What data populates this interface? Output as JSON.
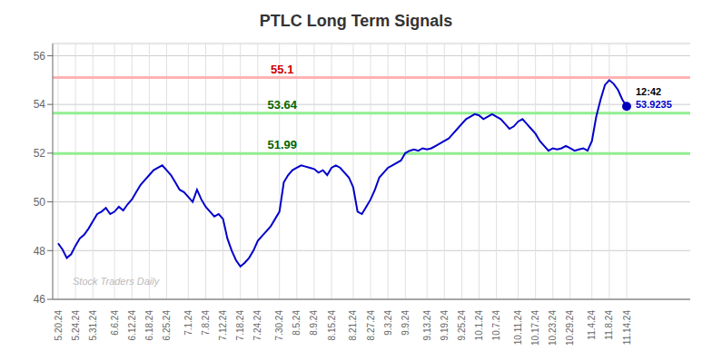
{
  "chart_data": {
    "type": "line",
    "title": "PTLC Long Term Signals",
    "grid": true,
    "ylim": [
      46,
      56.5
    ],
    "yticks": [
      46,
      48,
      50,
      52,
      54,
      56
    ],
    "categories": [
      "5.20.24",
      null,
      null,
      null,
      "5.24.24",
      null,
      null,
      null,
      "5.31.24",
      null,
      null,
      null,
      null,
      "6.6.24",
      null,
      null,
      null,
      "6.12.24",
      null,
      null,
      null,
      "6.18.24",
      null,
      null,
      null,
      "6.25.24",
      null,
      null,
      null,
      null,
      "7.1.24",
      null,
      null,
      null,
      "7.8.24",
      null,
      null,
      null,
      "7.12.24",
      null,
      null,
      null,
      "7.18.24",
      null,
      null,
      null,
      "7.24.24",
      null,
      null,
      null,
      null,
      "7.30.24",
      null,
      null,
      null,
      "8.5.24",
      null,
      null,
      null,
      "8.9.24",
      null,
      null,
      null,
      "8.15.24",
      null,
      null,
      null,
      null,
      "8.21.24",
      null,
      null,
      null,
      "8.27.24",
      null,
      null,
      null,
      "9.3.24",
      null,
      null,
      null,
      "9.9.24",
      null,
      null,
      null,
      null,
      "9.13.24",
      null,
      null,
      null,
      "9.19.24",
      null,
      null,
      null,
      "9.25.24",
      null,
      null,
      null,
      "10.1.24",
      null,
      null,
      null,
      "10.7.24",
      null,
      null,
      null,
      null,
      "10.11.24",
      null,
      null,
      null,
      "10.17.24",
      null,
      null,
      null,
      "10.23.24",
      null,
      null,
      null,
      "10.29.24",
      null,
      null,
      null,
      null,
      "11.4.24",
      null,
      null,
      null,
      "11.8.24",
      null,
      null,
      null,
      "11.14.24"
    ],
    "color": "#0000cc",
    "values": [
      48.3,
      48.05,
      47.7,
      47.85,
      48.2,
      48.5,
      48.65,
      48.9,
      49.2,
      49.5,
      49.6,
      49.75,
      49.5,
      49.6,
      49.8,
      49.65,
      49.9,
      50.1,
      50.4,
      50.7,
      50.9,
      51.1,
      51.3,
      51.4,
      51.5,
      51.3,
      51.1,
      50.8,
      50.5,
      50.4,
      50.2,
      50.0,
      50.5,
      50.1,
      49.8,
      49.6,
      49.4,
      49.5,
      49.3,
      48.5,
      48.0,
      47.6,
      47.35,
      47.5,
      47.7,
      48.0,
      48.4,
      48.6,
      48.8,
      49.0,
      49.3,
      49.6,
      50.8,
      51.1,
      51.3,
      51.4,
      51.5,
      51.45,
      51.4,
      51.35,
      51.2,
      51.3,
      51.1,
      51.4,
      51.5,
      51.4,
      51.2,
      51.0,
      50.6,
      49.6,
      49.5,
      49.8,
      50.1,
      50.5,
      51.0,
      51.2,
      51.4,
      51.5,
      51.6,
      51.7,
      52.0,
      52.1,
      52.15,
      52.1,
      52.2,
      52.15,
      52.2,
      52.3,
      52.4,
      52.5,
      52.6,
      52.8,
      53.0,
      53.2,
      53.4,
      53.5,
      53.6,
      53.55,
      53.4,
      53.5,
      53.6,
      53.5,
      53.4,
      53.2,
      53.0,
      53.1,
      53.3,
      53.4,
      53.2,
      53.0,
      52.8,
      52.5,
      52.3,
      52.1,
      52.2,
      52.15,
      52.2,
      52.3,
      52.2,
      52.1,
      52.15,
      52.2,
      52.1,
      52.5,
      53.5,
      54.2,
      54.8,
      55.0,
      54.85,
      54.6,
      54.2,
      53.9235
    ],
    "reference_lines": [
      {
        "value": 55.1,
        "label": "55.1",
        "color": "#ffb3b3",
        "label_color": "#cc0000"
      },
      {
        "value": 53.64,
        "label": "53.64",
        "color": "#90ee90",
        "label_color": "#006600"
      },
      {
        "value": 51.99,
        "label": "51.99",
        "color": "#90ee90",
        "label_color": "#006600"
      }
    ],
    "last_point": {
      "color": "#0000bb",
      "labels": [
        {
          "text": "12:42",
          "color": "#000000"
        },
        {
          "text": "53.9235",
          "color": "#0000cc"
        }
      ]
    },
    "watermark": {
      "text": "Stock Traders Daily",
      "color": "#bbbbbb"
    }
  }
}
